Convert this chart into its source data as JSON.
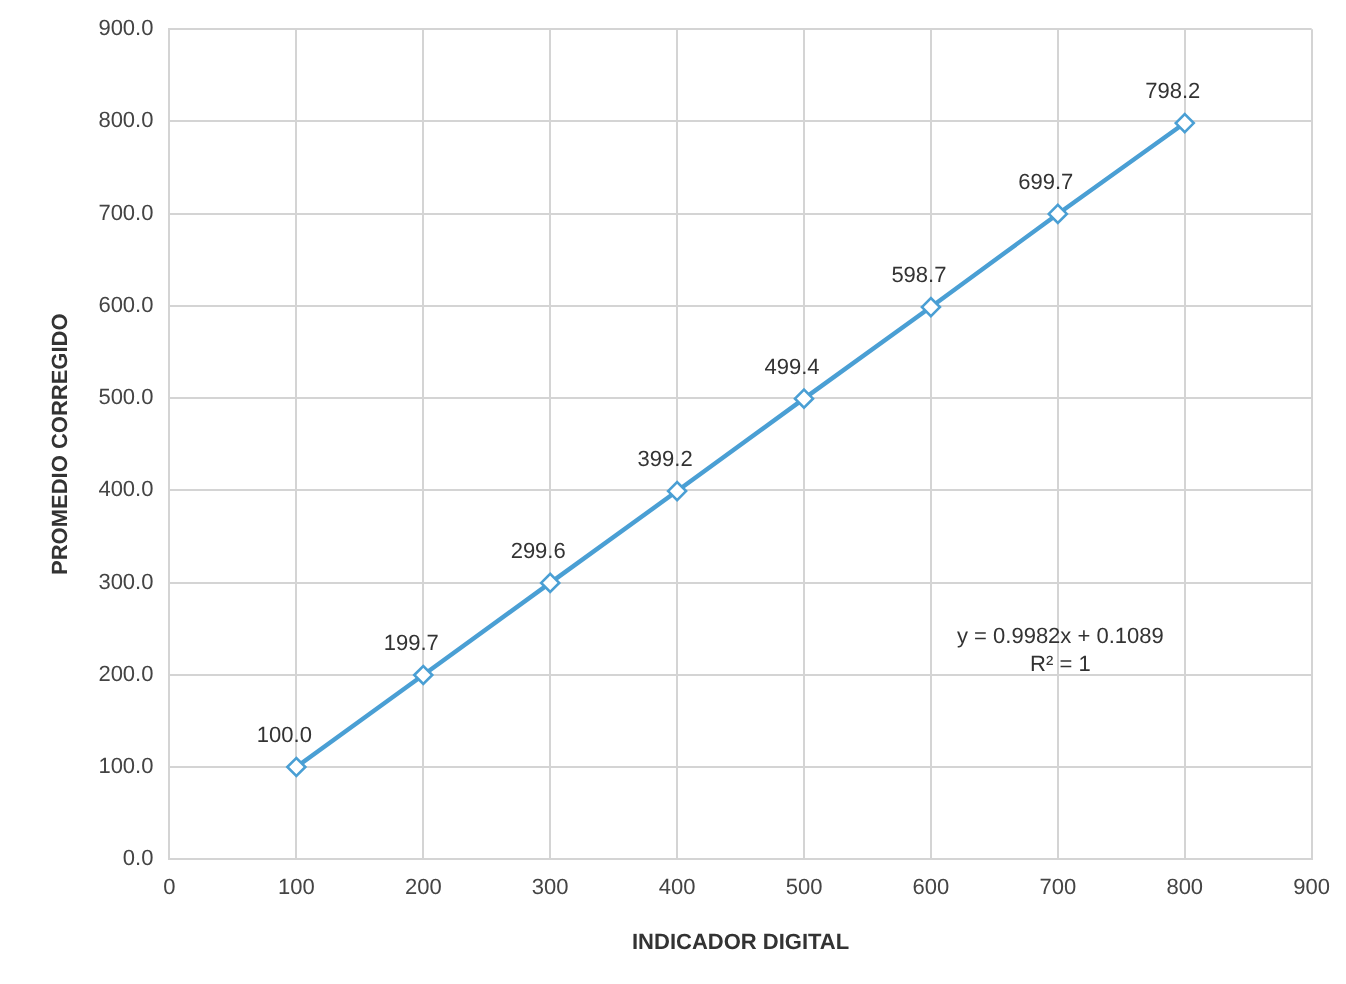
{
  "chart_data": {
    "type": "line",
    "xlabel": "INDICADOR DIGITAL",
    "ylabel": "PROMEDIO CORREGIDO",
    "x": [
      100,
      200,
      300,
      400,
      500,
      600,
      700,
      800
    ],
    "series": [
      {
        "color": "#4a9fd4",
        "values": [
          100.0,
          199.7,
          299.6,
          399.2,
          499.4,
          598.7,
          699.7,
          798.2
        ],
        "value_labels": [
          "100.0",
          "199.7",
          "299.6",
          "399.2",
          "499.4",
          "598.7",
          "699.7",
          "798.2"
        ]
      }
    ],
    "xlim": [
      0,
      900
    ],
    "xticks": [
      0,
      100,
      200,
      300,
      400,
      500,
      600,
      700,
      800,
      900
    ],
    "ylim": [
      0,
      900
    ],
    "yticks": [
      {
        "value": 0,
        "label": "0.0"
      },
      {
        "value": 100,
        "label": "100.0"
      },
      {
        "value": 200,
        "label": "200.0"
      },
      {
        "value": 300,
        "label": "300.0"
      },
      {
        "value": 400,
        "label": "400.0"
      },
      {
        "value": 500,
        "label": "500.0"
      },
      {
        "value": 600,
        "label": "600.0"
      },
      {
        "value": 700,
        "label": "700.0"
      },
      {
        "value": 800,
        "label": "800.0"
      },
      {
        "value": 900,
        "label": "900.0"
      }
    ],
    "annotations": [
      "y = 0.9982x + 0.1089",
      "R² = 1"
    ],
    "grid": true,
    "legend": false,
    "marker": "diamond",
    "line_style": "solid"
  }
}
